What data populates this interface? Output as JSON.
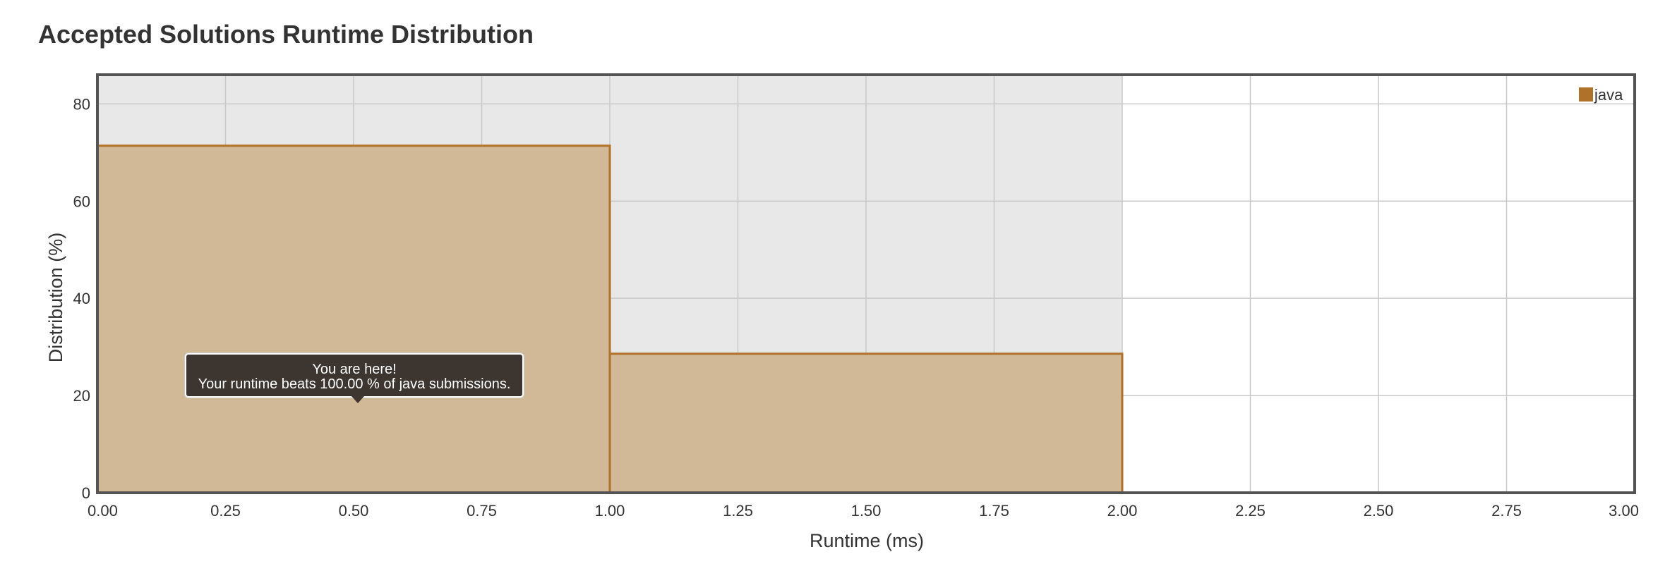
{
  "chart_data": {
    "type": "bar",
    "title": "Accepted Solutions Runtime Distribution",
    "xlabel": "Runtime (ms)",
    "ylabel": "Distribution (%)",
    "xlim": [
      0,
      3
    ],
    "ylim": [
      0,
      86
    ],
    "grid": true,
    "legend_position": "top-right",
    "x_ticks": [
      "0.00",
      "0.25",
      "0.50",
      "0.75",
      "1.00",
      "1.25",
      "1.50",
      "1.75",
      "2.00",
      "2.25",
      "2.50",
      "2.75",
      "3.00"
    ],
    "y_ticks": [
      "0",
      "20",
      "40",
      "60",
      "80"
    ],
    "highlight_range": [
      0,
      2
    ],
    "series": [
      {
        "name": "java",
        "color": "#b0712a",
        "fill": "#d1b896",
        "bins": [
          {
            "x_start": 0.0,
            "x_end": 1.0,
            "value": 71.4
          },
          {
            "x_start": 1.0,
            "x_end": 2.0,
            "value": 28.6
          }
        ]
      }
    ],
    "annotation": {
      "line1": "You are here!",
      "line2": "Your runtime beats 100.00 % of java submissions.",
      "x": 0.5,
      "y": 20
    }
  },
  "colors": {
    "highlight_bg": "#e8e8e8",
    "grid": "#c8c8c8",
    "frame": "#545454"
  }
}
